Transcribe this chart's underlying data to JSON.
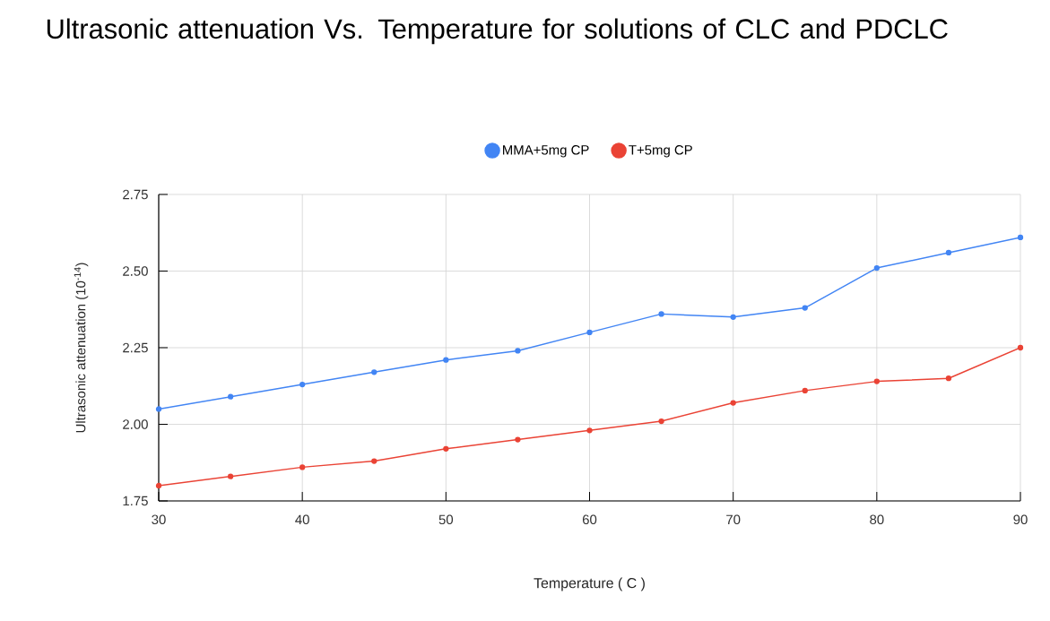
{
  "chart_data": {
    "type": "line",
    "title": "Ultrasonic attenuation Vs. Temperature for solutions of CLC and PDCLC",
    "xlabel": "Temperature ( C )",
    "ylabel": "Ultrasonic attenuation (10$^{-14}$)",
    "x": [
      30,
      35,
      40,
      45,
      50,
      55,
      60,
      65,
      70,
      75,
      80,
      85,
      90
    ],
    "series": [
      {
        "name": "MMA+5mg CP",
        "color": "#4285f4",
        "values": [
          2.05,
          2.09,
          2.13,
          2.17,
          2.21,
          2.24,
          2.3,
          2.36,
          2.35,
          2.38,
          2.51,
          2.56,
          2.61
        ]
      },
      {
        "name": "T+5mg CP",
        "color": "#ea4335",
        "values": [
          1.8,
          1.83,
          1.86,
          1.88,
          1.92,
          1.95,
          1.98,
          2.01,
          2.07,
          2.11,
          2.14,
          2.15,
          2.25
        ]
      }
    ],
    "xlim": [
      30,
      90
    ],
    "xticks": [
      30,
      40,
      50,
      60,
      70,
      80,
      90
    ],
    "ylim": [
      1.75,
      2.75
    ],
    "yticks": [
      {
        "value": 1.75,
        "label": "1.75"
      },
      {
        "value": 2.0,
        "label": "2.00"
      },
      {
        "value": 2.25,
        "label": "2.25"
      },
      {
        "value": 2.5,
        "label": "2.50"
      },
      {
        "value": 2.75,
        "label": "2.75"
      }
    ],
    "grid": true,
    "legend": "top",
    "marker": "circle",
    "line_style": "solid"
  }
}
